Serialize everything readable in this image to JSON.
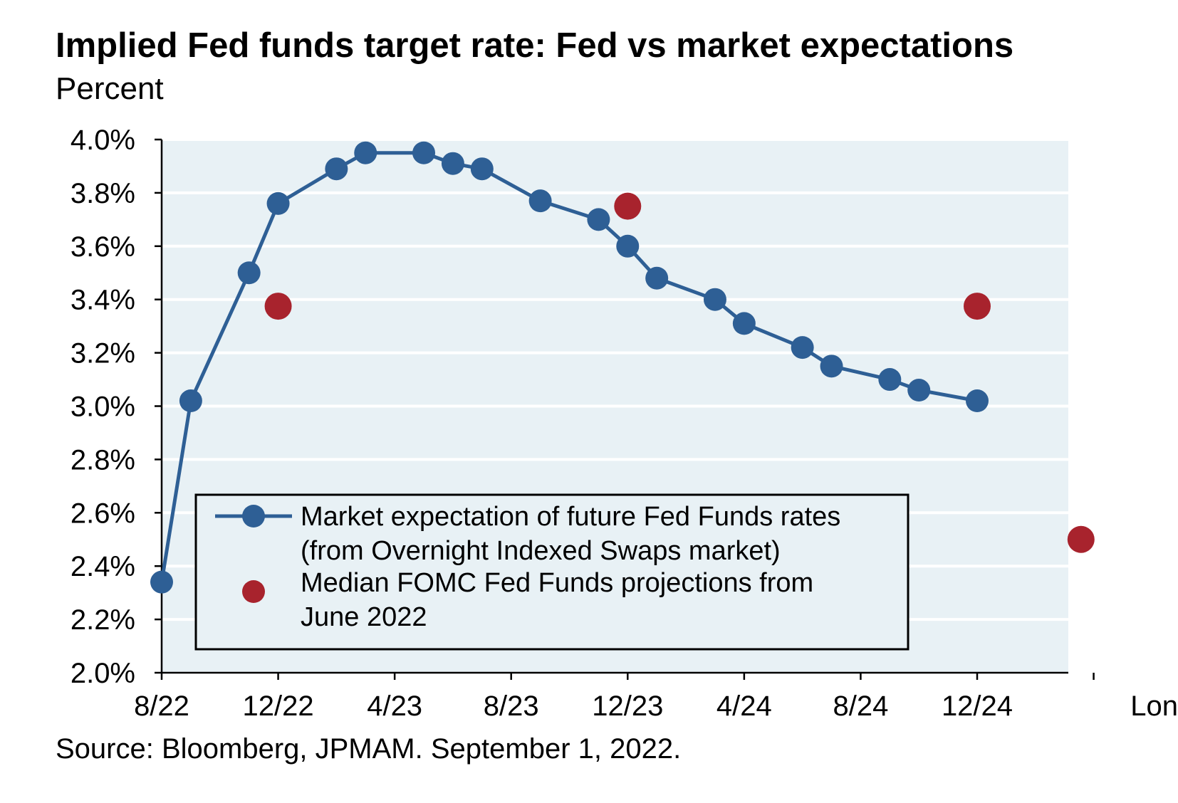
{
  "title": "Implied Fed funds target rate: Fed vs market expectations",
  "subtitle": "Percent",
  "source": "Source: Bloomberg, JPMAM. September 1, 2022.",
  "colors": {
    "plot_background": "#e8f1f5",
    "gridline": "#ffffff",
    "market_series": "#2e5f95",
    "fomc_series": "#a8232d"
  },
  "chart_data": {
    "type": "line",
    "title": "Implied Fed funds target rate: Fed vs market expectations",
    "ylabel": "Percent",
    "ylim": [
      2.0,
      4.0
    ],
    "yticks": [
      "2.0%",
      "2.2%",
      "2.4%",
      "2.6%",
      "2.8%",
      "3.0%",
      "3.2%",
      "3.4%",
      "3.6%",
      "3.8%",
      "4.0%"
    ],
    "yticks_values": [
      2.0,
      2.2,
      2.4,
      2.6,
      2.8,
      3.0,
      3.2,
      3.4,
      3.6,
      3.8,
      4.0
    ],
    "xlim": [
      "8/22",
      "Longer Term"
    ],
    "xticks": [
      "8/22",
      "12/22",
      "4/23",
      "8/23",
      "12/23",
      "4/24",
      "8/24",
      "12/24",
      "",
      "Longer Term"
    ],
    "grid": true,
    "legend_position": "lower-center",
    "series": [
      {
        "name": "Market expectation of future Fed Funds rates (from Overnight Indexed Swaps market)",
        "style": "line-with-markers",
        "x": [
          "Aug-22",
          "Sep-22",
          "Nov-22",
          "Dec-22",
          "Feb-23",
          "Mar-23",
          "May-23",
          "Jun-23",
          "Jul-23",
          "Sep-23",
          "Nov-23",
          "Dec-23",
          "Jan-24",
          "Mar-24",
          "Apr-24",
          "Jun-24",
          "Jul-24",
          "Sep-24",
          "Oct-24",
          "Dec-24"
        ],
        "values": [
          2.34,
          3.02,
          3.5,
          3.76,
          3.89,
          3.95,
          3.95,
          3.91,
          3.89,
          3.77,
          3.7,
          3.6,
          3.48,
          3.4,
          3.31,
          3.22,
          3.15,
          3.1,
          3.06,
          3.02
        ]
      },
      {
        "name": "Median FOMC Fed Funds projections from June 2022",
        "style": "markers-only",
        "x": [
          "Dec-22",
          "Dec-23",
          "Dec-24",
          "Longer Term"
        ],
        "values": [
          3.375,
          3.75,
          3.375,
          2.5
        ]
      }
    ],
    "legend": [
      {
        "lines": [
          "Market expectation of future Fed Funds rates",
          "(from Overnight Indexed Swaps market)"
        ]
      },
      {
        "lines": [
          "Median FOMC Fed Funds projections from",
          "June 2022"
        ]
      }
    ]
  }
}
